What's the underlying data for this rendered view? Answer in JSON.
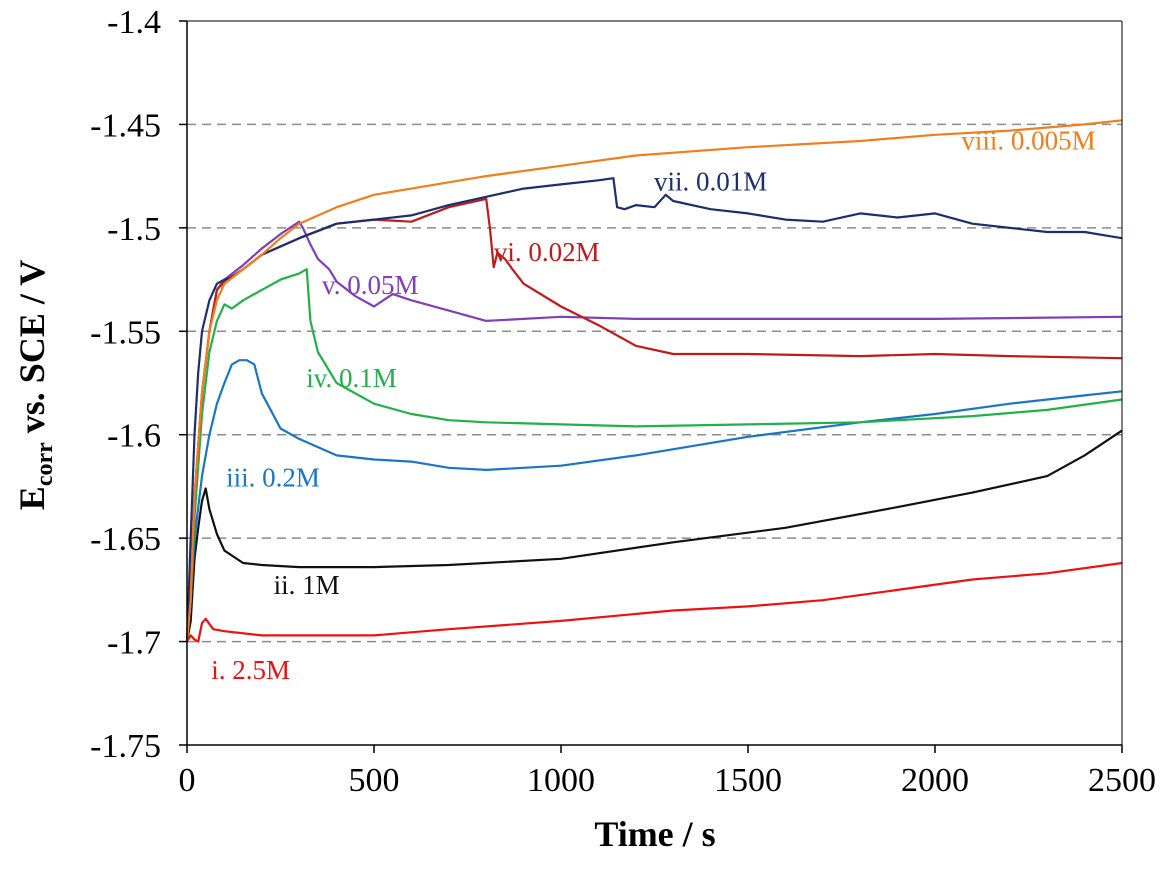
{
  "chart_data": {
    "type": "line",
    "title": "",
    "xlabel": "Time / s",
    "ylabel": {
      "main": "E",
      "sub": "corr",
      "rest": " vs. SCE / V"
    },
    "xlim": [
      0,
      2500
    ],
    "ylim": [
      -1.75,
      -1.4
    ],
    "x_ticks": [
      0,
      500,
      1000,
      1500,
      2000,
      2500
    ],
    "y_ticks": [
      -1.4,
      -1.45,
      -1.5,
      -1.55,
      -1.6,
      -1.65,
      -1.7,
      -1.75
    ],
    "y_tick_labels": [
      "-1.4",
      "-1.45",
      "-1.5",
      "-1.55",
      "-1.6",
      "-1.65",
      "-1.7",
      "-1.75"
    ],
    "grid": "horizontal dashed",
    "legend": "inline labels",
    "series": [
      {
        "name": "i. 2.5M",
        "color": "#ee1111",
        "x": [
          0,
          10,
          20,
          30,
          40,
          50,
          70,
          100,
          200,
          300,
          500,
          700,
          1000,
          1300,
          1500,
          1700,
          1900,
          2100,
          2300,
          2500
        ],
        "y": [
          -1.7,
          -1.697,
          -1.699,
          -1.7,
          -1.691,
          -1.689,
          -1.694,
          -1.695,
          -1.697,
          -1.697,
          -1.697,
          -1.694,
          -1.69,
          -1.685,
          -1.683,
          -1.68,
          -1.675,
          -1.67,
          -1.667,
          -1.662
        ]
      },
      {
        "name": "ii. 1M",
        "color": "#111111",
        "x": [
          0,
          10,
          20,
          30,
          40,
          50,
          60,
          80,
          100,
          150,
          200,
          300,
          500,
          700,
          1000,
          1300,
          1600,
          1900,
          2100,
          2300,
          2400,
          2500
        ],
        "y": [
          -1.7,
          -1.69,
          -1.66,
          -1.645,
          -1.632,
          -1.626,
          -1.636,
          -1.648,
          -1.656,
          -1.662,
          -1.663,
          -1.664,
          -1.664,
          -1.663,
          -1.66,
          -1.652,
          -1.645,
          -1.635,
          -1.628,
          -1.62,
          -1.61,
          -1.598
        ]
      },
      {
        "name": "iii. 0.2M",
        "color": "#1a75c7",
        "x": [
          0,
          10,
          20,
          40,
          60,
          80,
          100,
          120,
          140,
          160,
          180,
          200,
          250,
          300,
          400,
          500,
          600,
          700,
          800,
          1000,
          1200,
          1500,
          1800,
          2000,
          2200,
          2400,
          2500
        ],
        "y": [
          -1.7,
          -1.68,
          -1.65,
          -1.62,
          -1.6,
          -1.585,
          -1.575,
          -1.566,
          -1.564,
          -1.564,
          -1.566,
          -1.58,
          -1.597,
          -1.602,
          -1.61,
          -1.612,
          -1.613,
          -1.616,
          -1.617,
          -1.615,
          -1.61,
          -1.601,
          -1.594,
          -1.59,
          -1.585,
          -1.581,
          -1.579
        ]
      },
      {
        "name": "iv. 0.1M",
        "color": "#21b04a",
        "x": [
          0,
          10,
          20,
          40,
          60,
          80,
          100,
          120,
          150,
          200,
          250,
          300,
          320,
          330,
          350,
          400,
          500,
          600,
          700,
          800,
          1000,
          1200,
          1500,
          1800,
          2100,
          2300,
          2500
        ],
        "y": [
          -1.7,
          -1.68,
          -1.64,
          -1.59,
          -1.56,
          -1.545,
          -1.537,
          -1.539,
          -1.535,
          -1.53,
          -1.525,
          -1.522,
          -1.52,
          -1.545,
          -1.56,
          -1.575,
          -1.585,
          -1.59,
          -1.593,
          -1.594,
          -1.595,
          -1.596,
          -1.595,
          -1.594,
          -1.591,
          -1.588,
          -1.583
        ]
      },
      {
        "name": "v. 0.05M",
        "color": "#7f3fb8",
        "x": [
          0,
          10,
          20,
          40,
          60,
          80,
          100,
          150,
          200,
          250,
          300,
          310,
          330,
          350,
          380,
          400,
          450,
          500,
          550,
          600,
          700,
          800,
          900,
          1000,
          1200,
          1500,
          2000,
          2500
        ],
        "y": [
          -1.7,
          -1.68,
          -1.63,
          -1.58,
          -1.55,
          -1.53,
          -1.525,
          -1.518,
          -1.51,
          -1.503,
          -1.497,
          -1.5,
          -1.508,
          -1.515,
          -1.52,
          -1.526,
          -1.533,
          -1.538,
          -1.532,
          -1.535,
          -1.54,
          -1.545,
          -1.544,
          -1.543,
          -1.544,
          -1.544,
          -1.544,
          -1.543
        ]
      },
      {
        "name": "vi. 0.02M",
        "color": "#c01a1a",
        "x": [
          0,
          10,
          20,
          40,
          60,
          80,
          100,
          150,
          200,
          300,
          400,
          500,
          600,
          700,
          800,
          810,
          820,
          830,
          850,
          870,
          900,
          1000,
          1100,
          1200,
          1300,
          1500,
          1800,
          2000,
          2200,
          2500
        ],
        "y": [
          -1.7,
          -1.68,
          -1.63,
          -1.58,
          -1.55,
          -1.53,
          -1.526,
          -1.52,
          -1.513,
          -1.505,
          -1.498,
          -1.496,
          -1.497,
          -1.49,
          -1.486,
          -1.5,
          -1.519,
          -1.512,
          -1.515,
          -1.52,
          -1.527,
          -1.538,
          -1.547,
          -1.557,
          -1.561,
          -1.561,
          -1.562,
          -1.561,
          -1.562,
          -1.563
        ]
      },
      {
        "name": "vii. 0.01M",
        "color": "#1b2f6e",
        "x": [
          0,
          10,
          20,
          30,
          40,
          60,
          80,
          100,
          120,
          150,
          200,
          300,
          400,
          500,
          600,
          700,
          800,
          900,
          1000,
          1100,
          1140,
          1150,
          1170,
          1200,
          1250,
          1280,
          1300,
          1400,
          1500,
          1600,
          1700,
          1800,
          1900,
          2000,
          2100,
          2200,
          2300,
          2400,
          2500
        ],
        "y": [
          -1.7,
          -1.65,
          -1.6,
          -1.57,
          -1.55,
          -1.535,
          -1.527,
          -1.525,
          -1.524,
          -1.52,
          -1.513,
          -1.505,
          -1.498,
          -1.496,
          -1.494,
          -1.489,
          -1.485,
          -1.481,
          -1.479,
          -1.477,
          -1.476,
          -1.49,
          -1.491,
          -1.489,
          -1.49,
          -1.484,
          -1.487,
          -1.491,
          -1.493,
          -1.496,
          -1.497,
          -1.493,
          -1.495,
          -1.493,
          -1.498,
          -1.5,
          -1.502,
          -1.502,
          -1.505
        ]
      },
      {
        "name": "viii. 0.005M",
        "color": "#f07e1c",
        "x": [
          0,
          10,
          20,
          40,
          60,
          80,
          100,
          150,
          200,
          250,
          300,
          400,
          500,
          600,
          700,
          800,
          1000,
          1200,
          1500,
          1800,
          2000,
          2200,
          2400,
          2500
        ],
        "y": [
          -1.7,
          -1.68,
          -1.63,
          -1.58,
          -1.55,
          -1.535,
          -1.527,
          -1.52,
          -1.513,
          -1.505,
          -1.498,
          -1.49,
          -1.484,
          -1.481,
          -1.478,
          -1.475,
          -1.47,
          -1.465,
          -1.461,
          -1.458,
          -1.455,
          -1.453,
          -1.45,
          -1.448
        ]
      }
    ],
    "annotations": [
      {
        "text": "i. 2.5M",
        "series": 0,
        "x": 170,
        "y": -1.718
      },
      {
        "text": "ii. 1M",
        "series": 1,
        "x": 320,
        "y": -1.677
      },
      {
        "text": "iii. 0.2M",
        "series": 2,
        "x": 230,
        "y": -1.625
      },
      {
        "text": "iv. 0.1M",
        "series": 3,
        "x": 440,
        "y": -1.577
      },
      {
        "text": "v. 0.05M",
        "series": 4,
        "x": 490,
        "y": -1.532
      },
      {
        "text": "vi. 0.02M",
        "series": 5,
        "x": 962,
        "y": -1.516
      },
      {
        "text": "vii. 0.01M",
        "series": 6,
        "x": 1400,
        "y": -1.482
      },
      {
        "text": "viii. 0.005M",
        "series": 7,
        "x": 2250,
        "y": -1.462
      }
    ]
  }
}
